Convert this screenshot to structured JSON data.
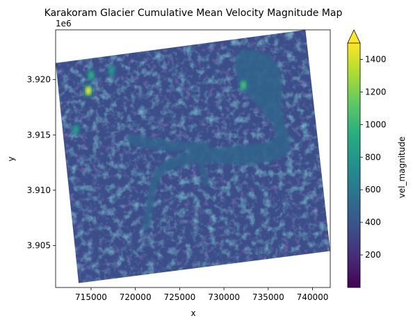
{
  "chart_data": {
    "type": "heatmap",
    "title": "Karakoram Glacier Cumulative Mean Velocity Magnitude Map",
    "xlabel": "x",
    "ylabel": "y",
    "y_offset_label": "1e6",
    "xlim": [
      711000,
      742000
    ],
    "ylim": [
      3901200,
      3924500
    ],
    "x_ticks": [
      715000,
      720000,
      725000,
      730000,
      735000,
      740000
    ],
    "x_tick_labels": [
      "715000",
      "720000",
      "725000",
      "730000",
      "735000",
      "740000"
    ],
    "y_ticks": [
      3905000,
      3910000,
      3915000,
      3920000
    ],
    "y_tick_labels": [
      "3.905",
      "3.910",
      "3.915",
      "3.920"
    ],
    "colorbar": {
      "label": "vel_magnitude",
      "colormap": "viridis",
      "range": [
        0,
        1500
      ],
      "extend": "max",
      "ticks": [
        200,
        400,
        600,
        800,
        1000,
        1200,
        1400
      ],
      "tick_labels": [
        "200",
        "400",
        "600",
        "800",
        "1000",
        "1200",
        "1400"
      ]
    },
    "raster": {
      "footprint_corners": [
        [
          711000,
          3921500
        ],
        [
          739200,
          3924500
        ],
        [
          742000,
          3904500
        ],
        [
          713600,
          3901600
        ]
      ],
      "background_value": 360,
      "glacier_value": 480,
      "hotspots": [
        {
          "x": 714700,
          "y": 3919000,
          "value": 1450
        },
        {
          "x": 715000,
          "y": 3920400,
          "value": 950
        },
        {
          "x": 732200,
          "y": 3919500,
          "value": 1050
        },
        {
          "x": 713300,
          "y": 3915500,
          "value": 850
        },
        {
          "x": 717300,
          "y": 3920800,
          "value": 800
        }
      ]
    }
  }
}
